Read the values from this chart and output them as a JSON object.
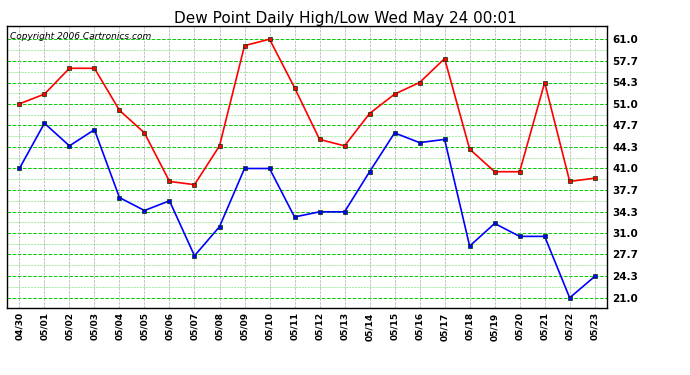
{
  "title": "Dew Point Daily High/Low Wed May 24 00:01",
  "copyright": "Copyright 2006 Cartronics.com",
  "x_labels": [
    "04/30",
    "05/01",
    "05/02",
    "05/03",
    "05/04",
    "05/05",
    "05/06",
    "05/07",
    "05/08",
    "05/09",
    "05/10",
    "05/11",
    "05/12",
    "05/13",
    "05/14",
    "05/15",
    "05/16",
    "05/17",
    "05/18",
    "05/19",
    "05/20",
    "05/21",
    "05/22",
    "05/23"
  ],
  "high_values": [
    51.0,
    52.5,
    56.5,
    56.5,
    50.0,
    46.5,
    39.0,
    38.5,
    44.5,
    60.0,
    61.0,
    53.5,
    45.5,
    44.5,
    49.5,
    52.5,
    54.3,
    58.0,
    44.0,
    40.5,
    40.5,
    54.3,
    39.0,
    39.5
  ],
  "low_values": [
    41.0,
    48.0,
    44.5,
    47.0,
    36.5,
    34.5,
    36.0,
    27.5,
    32.0,
    41.0,
    41.0,
    33.5,
    34.3,
    34.3,
    40.5,
    46.5,
    45.0,
    45.5,
    29.0,
    32.5,
    30.5,
    30.5,
    21.0,
    24.3
  ],
  "y_ticks": [
    21.0,
    24.3,
    27.7,
    31.0,
    34.3,
    37.7,
    41.0,
    44.3,
    47.7,
    51.0,
    54.3,
    57.7,
    61.0
  ],
  "ylim": [
    19.5,
    63.0
  ],
  "high_color": "#ff0000",
  "low_color": "#0000ff",
  "bg_color": "#ffffff",
  "plot_bg_color": "#ffffff",
  "grid_h_color": "#00cc00",
  "grid_v_color": "#aaaaaa",
  "title_fontsize": 11,
  "copyright_fontsize": 6.5
}
